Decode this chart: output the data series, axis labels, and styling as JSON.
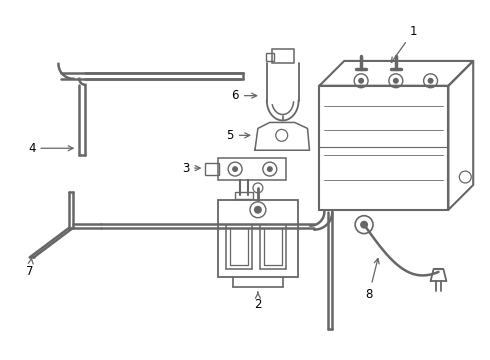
{
  "background_color": "#ffffff",
  "line_color": "#666666",
  "text_color": "#000000",
  "lw": 1.3
}
